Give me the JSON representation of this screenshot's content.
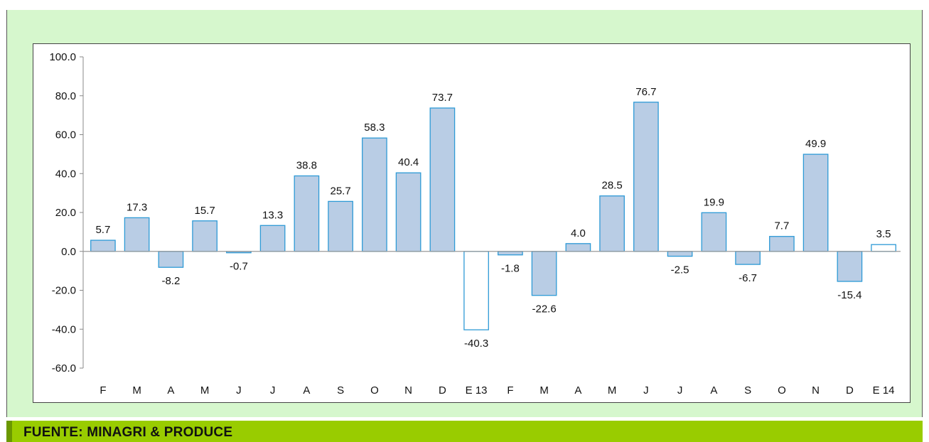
{
  "chart_data": {
    "type": "bar",
    "title": "",
    "xlabel": "",
    "ylabel": "",
    "ylim": [
      -60,
      100
    ],
    "yticks": [
      "100.0",
      "80.0",
      "60.0",
      "40.0",
      "20.0",
      "0.0",
      "-20.0",
      "-40.0",
      "-60.0"
    ],
    "grid": false,
    "categories": [
      "F",
      "M",
      "A",
      "M",
      "J",
      "J",
      "A",
      "S",
      "O",
      "N",
      "D",
      "E 13",
      "F",
      "M",
      "A",
      "M",
      "J",
      "J",
      "A",
      "S",
      "O",
      "N",
      "D",
      "E 14"
    ],
    "values": [
      5.7,
      17.3,
      -8.2,
      15.7,
      -0.7,
      13.3,
      38.8,
      25.7,
      58.3,
      40.4,
      73.7,
      -40.3,
      -1.8,
      -22.6,
      4.0,
      28.5,
      76.7,
      -2.5,
      19.9,
      -6.7,
      7.7,
      49.9,
      -15.4,
      3.5
    ],
    "labels": [
      "5.7",
      "17.3",
      "-8.2",
      "15.7",
      "-0.7",
      "13.3",
      "38.8",
      "25.7",
      "58.3",
      "40.4",
      "73.7",
      "-40.3",
      "-1.8",
      "-22.6",
      "4.0",
      "28.5",
      "76.7",
      "-2.5",
      "19.9",
      "-6.7",
      "7.7",
      "49.9",
      "-15.4",
      "3.5"
    ],
    "highlighted": [
      false,
      false,
      false,
      false,
      false,
      false,
      false,
      false,
      false,
      false,
      false,
      true,
      false,
      false,
      false,
      false,
      false,
      false,
      false,
      false,
      false,
      false,
      false,
      true
    ],
    "colors": {
      "bar_fill": "#b9cde5",
      "bar_stroke": "#2e9ad6",
      "highlight_fill": "#ffffff"
    }
  },
  "footer": {
    "source": "FUENTE: MINAGRI & PRODUCE"
  }
}
